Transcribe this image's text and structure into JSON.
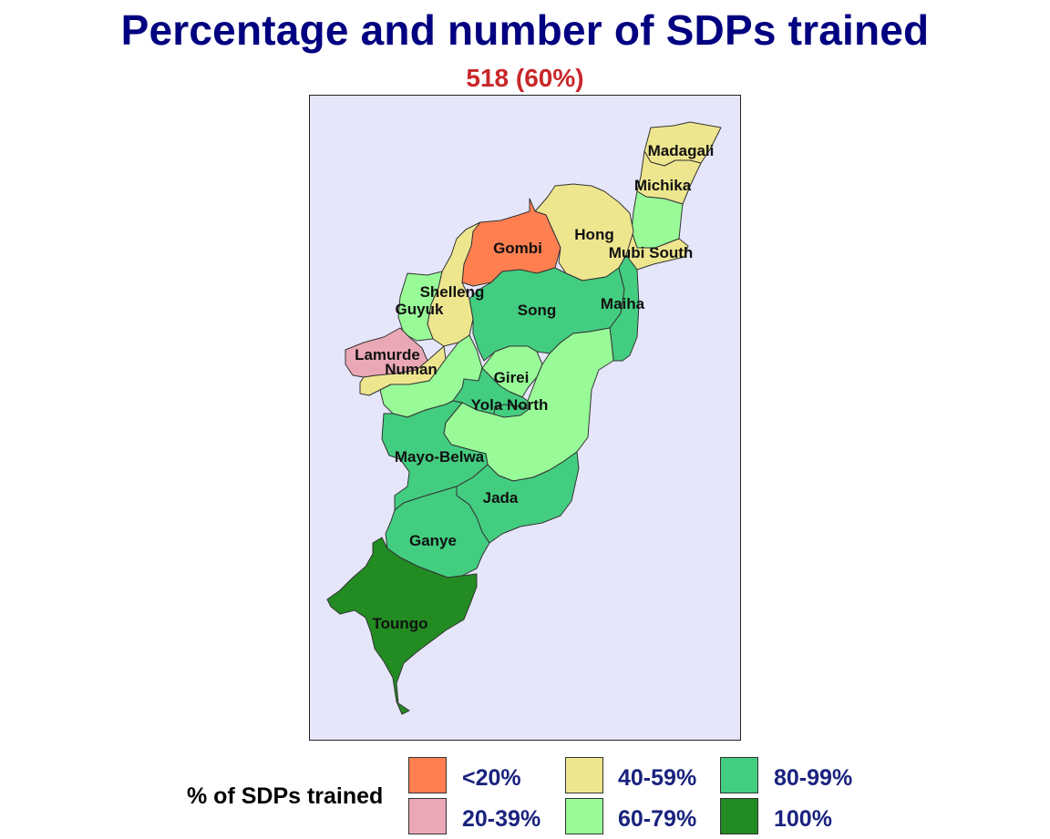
{
  "title": "Percentage and number of SDPs trained",
  "subtitle": "518 (60%)",
  "colors": {
    "lt20": "#ff7f50",
    "p20_39": "#eaa8b6",
    "p40_59": "#eee68f",
    "p60_79": "#98fb98",
    "p80_99": "#43cd80",
    "p100": "#228b22",
    "background": "#e6e6fa",
    "title": "#000080",
    "subtitle": "#c8282a"
  },
  "districts": [
    {
      "name": "Madagali",
      "category": "40-59%"
    },
    {
      "name": "Michika",
      "category": "40-59%"
    },
    {
      "name": "Hong",
      "category": "40-59%"
    },
    {
      "name": "Mubi South",
      "category": "40-59%"
    },
    {
      "name": "Gombi",
      "category": "<20%"
    },
    {
      "name": "Shelleng",
      "category": "40-59%"
    },
    {
      "name": "Guyuk",
      "category": "60-79%"
    },
    {
      "name": "Song",
      "category": "80-99%"
    },
    {
      "name": "Maiha",
      "category": "80-99%"
    },
    {
      "name": "Lamurde",
      "category": "20-39%"
    },
    {
      "name": "Numan",
      "category": "40-59%"
    },
    {
      "name": "Girei",
      "category": "60-79%"
    },
    {
      "name": "Yola North",
      "category": "80-99%"
    },
    {
      "name": "Mayo-Belwa",
      "category": "80-99%"
    },
    {
      "name": "Jada",
      "category": "80-99%"
    },
    {
      "name": "Ganye",
      "category": "80-99%"
    },
    {
      "name": "Toungo",
      "category": "100%"
    }
  ],
  "legend": {
    "title": "% of SDPs trained",
    "items": [
      {
        "label": "<20%",
        "color": "#ff7f50"
      },
      {
        "label": "20-39%",
        "color": "#eaa8b6"
      },
      {
        "label": "40-59%",
        "color": "#eee68f"
      },
      {
        "label": "60-79%",
        "color": "#98fb98"
      },
      {
        "label": "80-99%",
        "color": "#43cd80"
      },
      {
        "label": "100%",
        "color": "#228b22"
      }
    ]
  }
}
